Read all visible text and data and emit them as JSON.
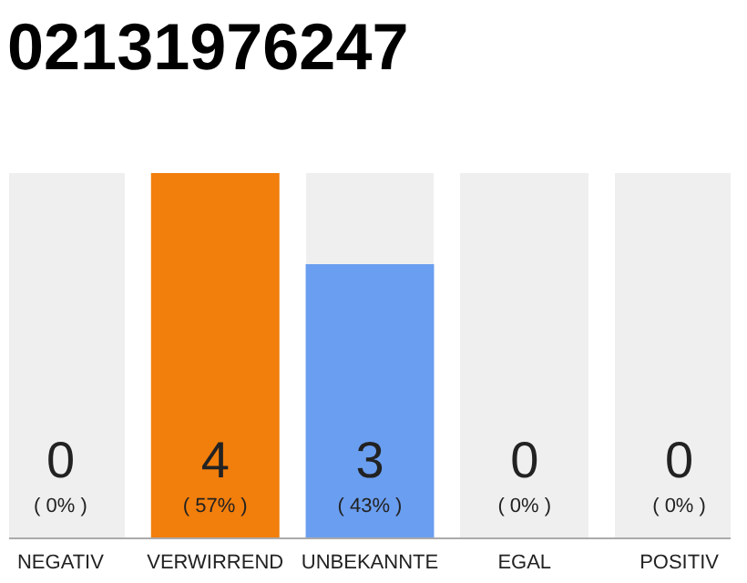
{
  "chart_data": {
    "type": "bar",
    "title": "02131976247",
    "categories": [
      "NEGATIV",
      "VERWIRREND",
      "UNBEKANNTE",
      "EGAL",
      "POSITIV"
    ],
    "values": [
      0,
      4,
      3,
      0,
      0
    ],
    "colors": [
      "#e8e8e8",
      "#f27e0b",
      "#6a9ef0",
      "#e8e8e8",
      "#e8e8e8"
    ],
    "tick_labels": "x",
    "value_labels": [
      "0",
      "4",
      "3",
      "0",
      "0"
    ],
    "annotations": [
      "( 0% )",
      "( 57% )",
      "( 43% )",
      "( 0% )",
      "( 0% )"
    ]
  }
}
